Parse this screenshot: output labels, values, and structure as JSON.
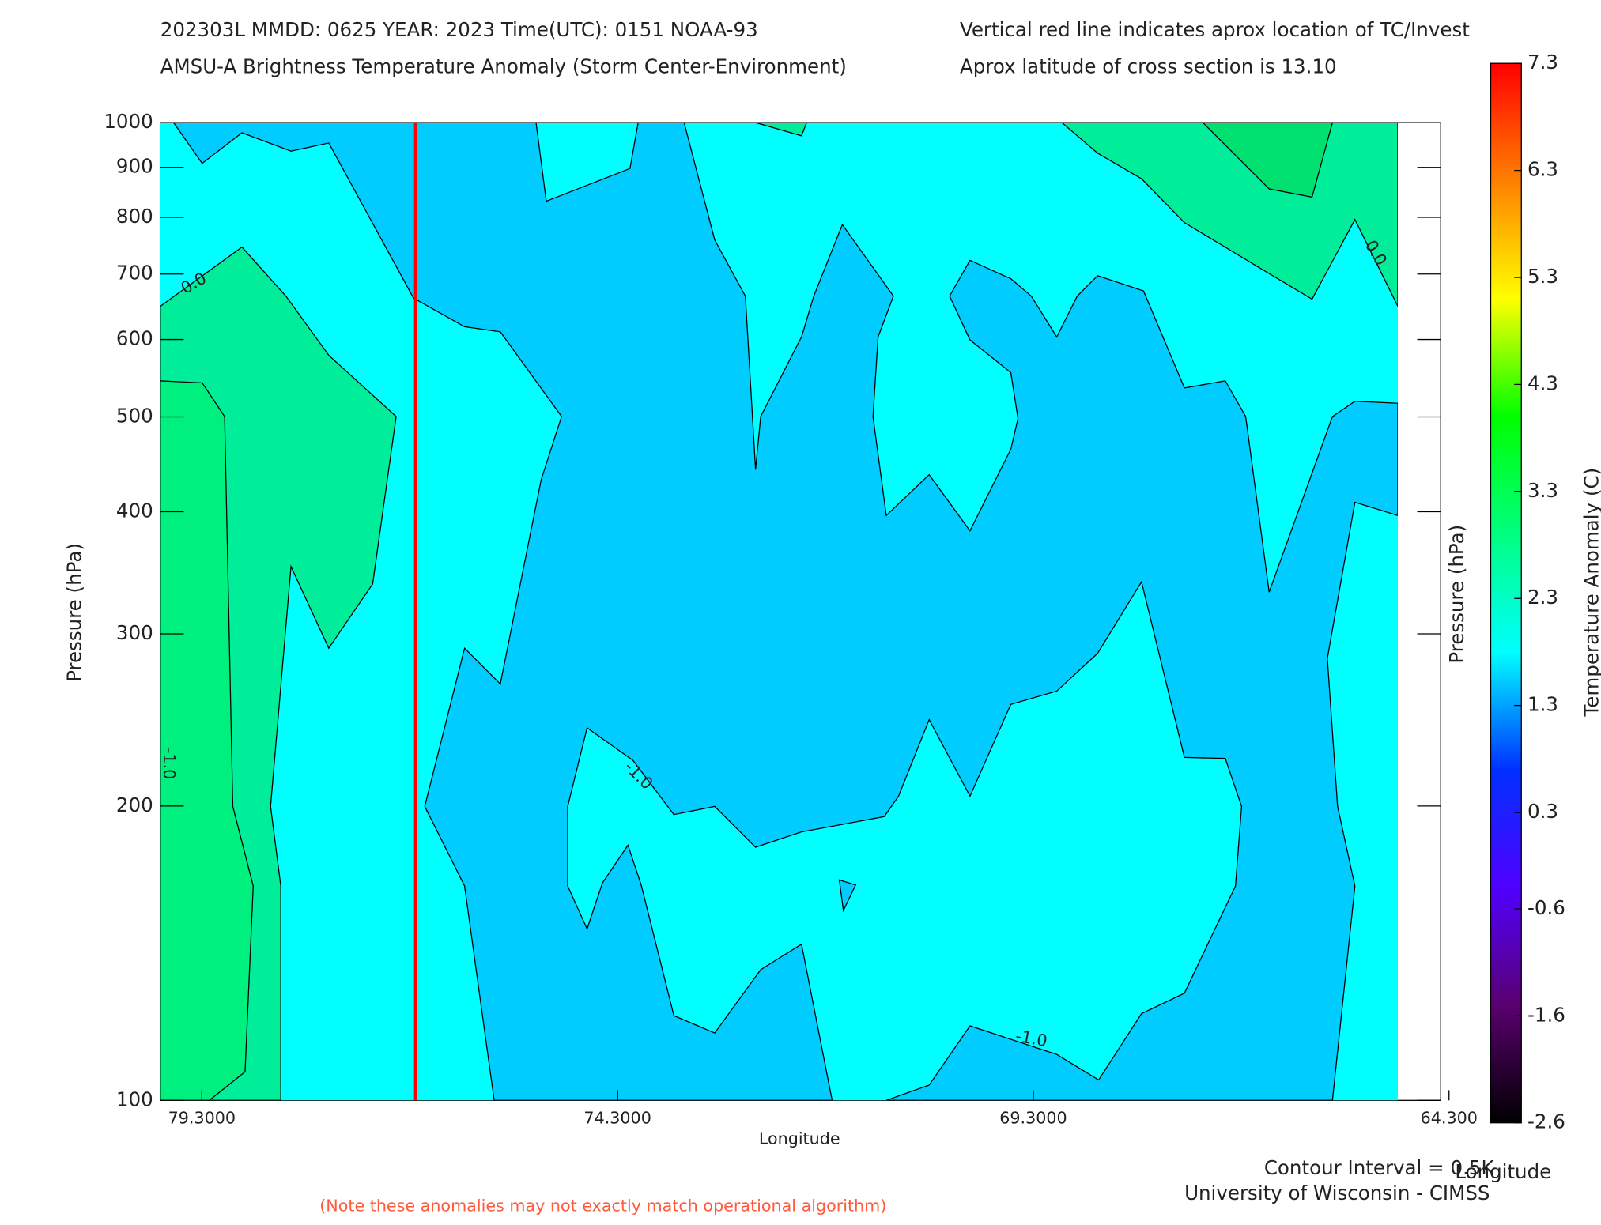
{
  "chart_data": {
    "type": "contour",
    "title": "202303L  MMDD: 0625 YEAR: 2023 Time(UTC): 0151 NOAA-93",
    "subtitle": "AMSU-A Brightness Temperature Anomaly (Storm Center-Environment)",
    "note_right_1": "Vertical red line indicates aprox location of TC/Invest",
    "note_right_2": "Aprox latitude of cross section is 13.10",
    "x_label": "Longitude",
    "y_label": "Pressure (hPa)",
    "y2_label": "Pressure (hPa)",
    "colorbar_label": "Temperature Anomaly (C)",
    "contour_interval": "Contour Interval = 0.5K",
    "x_label_2": "Longitude",
    "credit": "University of Wisconsin - CIMSS",
    "footnote": "(Note these anomalies may not exactly match operational algorithm)",
    "xlim": [
      79.8,
      64.4
    ],
    "xticks": [
      {
        "value": 79.3,
        "label": "79.3000"
      },
      {
        "value": 74.3,
        "label": "74.3000"
      },
      {
        "value": 69.3,
        "label": "69.3000"
      },
      {
        "value": 64.3,
        "label": "64.300"
      }
    ],
    "ylim": [
      100,
      1000
    ],
    "y_scale": "log",
    "yticks": [
      100,
      200,
      300,
      400,
      500,
      600,
      700,
      800,
      900,
      1000
    ],
    "tc_longitude": 76.73,
    "tc_color": "#ff0000",
    "clim": [
      -2.6,
      7.3
    ],
    "cticks": [
      7.3,
      6.3,
      5.3,
      4.3,
      3.3,
      2.3,
      1.3,
      0.3,
      -0.6,
      -1.6,
      -2.6
    ],
    "colormap": [
      "#000000",
      "#5a0070",
      "#5000ff",
      "#0030ff",
      "#00ffff",
      "#00ff80",
      "#00ff00",
      "#ffff00",
      "#ff8000",
      "#ff0000"
    ],
    "contour_labels": [
      "0.0",
      "0.0",
      "-1.0",
      "-1.0",
      "-1.0"
    ]
  }
}
